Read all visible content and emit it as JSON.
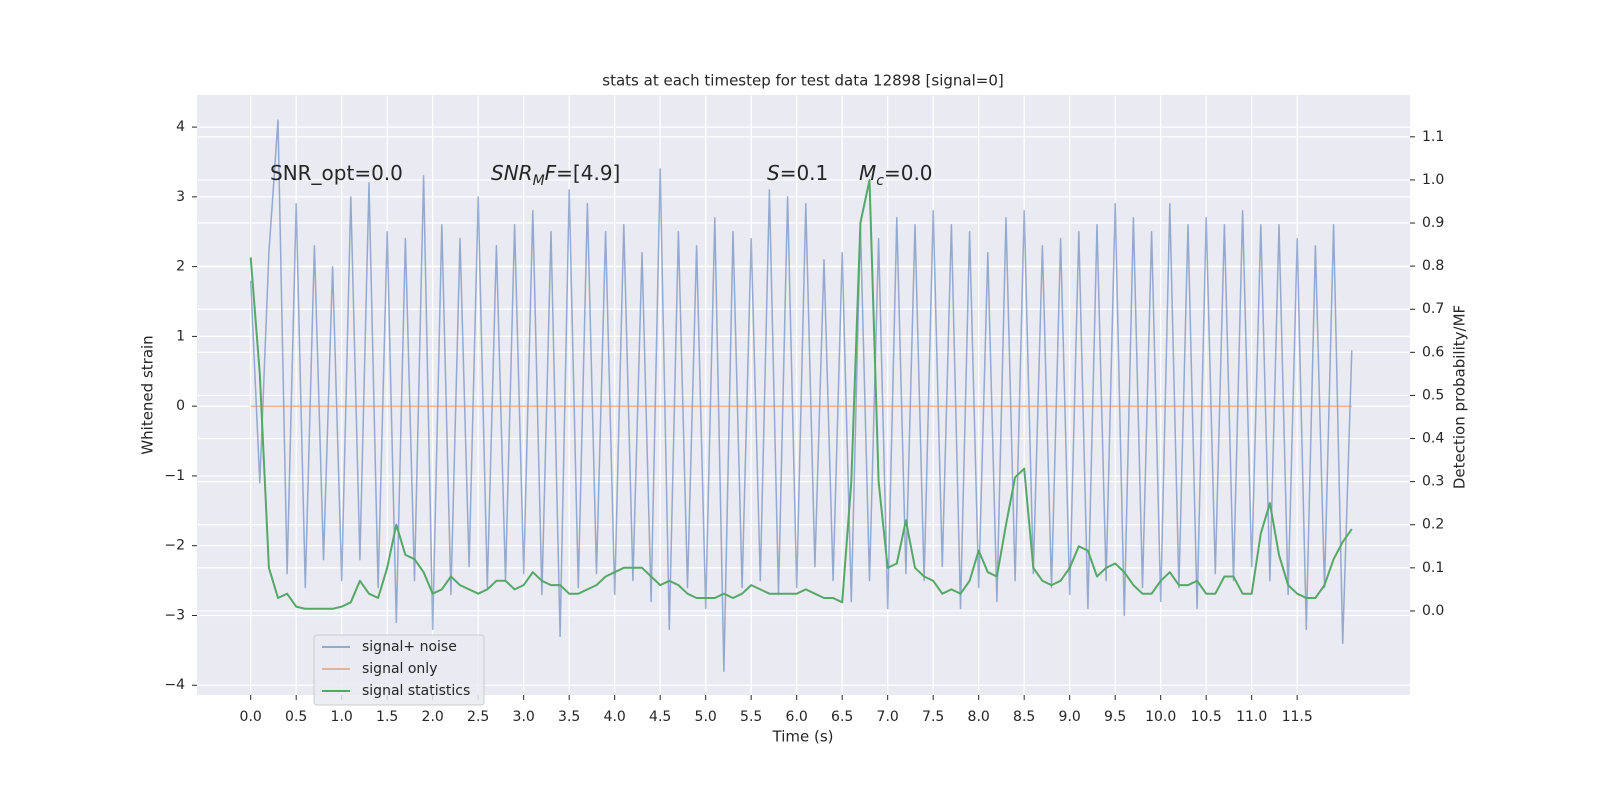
{
  "chart_data": {
    "type": "line",
    "title": "stats at each timestep for test data 12898 [signal=0]",
    "xlabel": "Time (s)",
    "ylabel": "Whitened strain",
    "y2label": "Detection probability/MF",
    "x": [
      0.0,
      0.1,
      0.2,
      0.3,
      0.4,
      0.5,
      0.6,
      0.7,
      0.8,
      0.9,
      1.0,
      1.1,
      1.2,
      1.3,
      1.4,
      1.5,
      1.6,
      1.7,
      1.8,
      1.9,
      2.0,
      2.1,
      2.2,
      2.3,
      2.4,
      2.5,
      2.6,
      2.7,
      2.8,
      2.9,
      3.0,
      3.1,
      3.2,
      3.3,
      3.4,
      3.5,
      3.6,
      3.7,
      3.8,
      3.9,
      4.0,
      4.1,
      4.2,
      4.3,
      4.4,
      4.5,
      4.6,
      4.7,
      4.8,
      4.9,
      5.0,
      5.1,
      5.2,
      5.3,
      5.4,
      5.5,
      5.6,
      5.7,
      5.8,
      5.9,
      6.0,
      6.1,
      6.2,
      6.3,
      6.4,
      6.5,
      6.6,
      6.7,
      6.8,
      6.9,
      7.0,
      7.1,
      7.2,
      7.3,
      7.4,
      7.5,
      7.6,
      7.7,
      7.8,
      7.9,
      8.0,
      8.1,
      8.2,
      8.3,
      8.4,
      8.5,
      8.6,
      8.7,
      8.8,
      8.9,
      9.0,
      9.1,
      9.2,
      9.3,
      9.4,
      9.5,
      9.6,
      9.7,
      9.8,
      9.9,
      10.0,
      10.1,
      10.2,
      10.3,
      10.4,
      10.5,
      10.6,
      10.7,
      10.8,
      10.9,
      11.0,
      11.1,
      11.2,
      11.3,
      11.4,
      11.5,
      11.6,
      11.7,
      11.8,
      11.9,
      12.0,
      12.1
    ],
    "series": [
      {
        "name": "signal+ noise",
        "color": "#4c72b0",
        "opacity": 0.55,
        "values": [
          1.8,
          -1.1,
          2.2,
          4.1,
          -2.4,
          2.9,
          -2.6,
          2.3,
          -2.2,
          2.0,
          -2.5,
          3.0,
          -2.2,
          3.2,
          -2.6,
          2.5,
          -3.1,
          2.4,
          -2.5,
          3.3,
          -3.2,
          2.6,
          -2.7,
          2.4,
          -2.3,
          3.0,
          -2.6,
          2.3,
          -2.5,
          2.6,
          -2.4,
          2.8,
          -2.7,
          2.5,
          -3.3,
          3.1,
          -2.6,
          2.9,
          -2.4,
          2.5,
          -2.7,
          2.6,
          -2.5,
          2.2,
          -2.8,
          3.4,
          -3.2,
          2.5,
          -2.6,
          2.3,
          -2.9,
          2.7,
          -3.8,
          2.5,
          -2.6,
          2.4,
          -2.5,
          3.1,
          -2.7,
          3.0,
          -2.6,
          2.9,
          -2.3,
          2.1,
          -2.5,
          2.2,
          -2.8,
          2.6,
          -2.5,
          2.4,
          -2.9,
          2.7,
          -2.4,
          2.6,
          -2.5,
          2.8,
          -2.3,
          2.6,
          -2.9,
          2.5,
          -2.6,
          2.2,
          -2.8,
          2.7,
          -2.5,
          2.8,
          -2.4,
          2.3,
          -2.6,
          2.4,
          -2.7,
          2.5,
          -2.9,
          2.6,
          -2.5,
          2.9,
          -3.0,
          2.7,
          -2.6,
          2.5,
          -2.8,
          2.9,
          -2.6,
          2.6,
          -2.9,
          2.7,
          -2.4,
          2.6,
          -2.5,
          2.8,
          -2.3,
          2.6,
          -2.5,
          2.6,
          -2.7,
          2.4,
          -3.2,
          2.3,
          -2.6,
          2.6,
          -3.4,
          0.8
        ]
      },
      {
        "name": "signal only",
        "color": "#dd8452",
        "opacity": 0.55,
        "x": [
          0.0,
          12.1
        ],
        "values": [
          0,
          0
        ]
      },
      {
        "name": "signal statistics",
        "color": "#55a868",
        "opacity": 1,
        "axis": "y2",
        "values": [
          0.82,
          0.55,
          0.1,
          0.03,
          0.04,
          0.01,
          0.005,
          0.005,
          0.005,
          0.005,
          0.01,
          0.02,
          0.07,
          0.04,
          0.03,
          0.1,
          0.2,
          0.13,
          0.12,
          0.09,
          0.04,
          0.05,
          0.08,
          0.06,
          0.05,
          0.04,
          0.05,
          0.07,
          0.07,
          0.05,
          0.06,
          0.09,
          0.07,
          0.06,
          0.06,
          0.04,
          0.04,
          0.05,
          0.06,
          0.08,
          0.09,
          0.1,
          0.1,
          0.1,
          0.08,
          0.06,
          0.07,
          0.06,
          0.04,
          0.03,
          0.03,
          0.03,
          0.04,
          0.03,
          0.04,
          0.06,
          0.05,
          0.04,
          0.04,
          0.04,
          0.04,
          0.05,
          0.04,
          0.03,
          0.03,
          0.02,
          0.3,
          0.9,
          1.0,
          0.3,
          0.1,
          0.11,
          0.21,
          0.1,
          0.08,
          0.07,
          0.04,
          0.05,
          0.04,
          0.07,
          0.14,
          0.09,
          0.08,
          0.2,
          0.31,
          0.33,
          0.1,
          0.07,
          0.06,
          0.07,
          0.1,
          0.15,
          0.14,
          0.08,
          0.1,
          0.11,
          0.09,
          0.06,
          0.04,
          0.04,
          0.07,
          0.09,
          0.06,
          0.06,
          0.07,
          0.04,
          0.04,
          0.08,
          0.08,
          0.04,
          0.04,
          0.18,
          0.25,
          0.13,
          0.06,
          0.04,
          0.03,
          0.03,
          0.06,
          0.12,
          0.16,
          0.19
        ]
      }
    ],
    "annotations": [
      [
        {
          "text": "SNR_opt=0.0",
          "style": "normal"
        }
      ],
      [
        {
          "text": "SNR",
          "style": "italic"
        },
        {
          "text": "M",
          "style": "sub"
        },
        {
          "text": "F",
          "style": "italic"
        },
        {
          "text": "=[4.9]",
          "style": "normal"
        }
      ],
      [
        {
          "text": "S",
          "style": "italic"
        },
        {
          "text": "=0.1",
          "style": "normal"
        }
      ],
      [
        {
          "text": "M",
          "style": "italic"
        },
        {
          "text": "c",
          "style": "sub"
        },
        {
          "text": "=0.0",
          "style": "normal"
        }
      ]
    ],
    "xlim": [
      -0.59,
      12.74
    ],
    "xticks": [
      {
        "value": 0,
        "label": "0.0"
      },
      0.5,
      {
        "value": 1,
        "label": "1.0"
      },
      1.5,
      {
        "value": 2,
        "label": "2.0"
      },
      2.5,
      {
        "value": 3,
        "label": "3.0"
      },
      3.5,
      {
        "value": 4,
        "label": "4.0"
      },
      4.5,
      {
        "value": 5,
        "label": "5.0"
      },
      5.5,
      {
        "value": 6,
        "label": "6.0"
      },
      6.5,
      {
        "value": 7,
        "label": "7.0"
      },
      7.5,
      {
        "value": 8,
        "label": "8.0"
      },
      8.5,
      {
        "value": 9,
        "label": "9.0"
      },
      9.5,
      {
        "value": 10,
        "label": "10.0"
      },
      10.5,
      {
        "value": 11,
        "label": "11.0"
      },
      11.5
    ],
    "ylim": [
      -4.14,
      4.46
    ],
    "yticks": [
      4,
      3,
      2,
      1,
      0,
      {
        "value": -1,
        "label": "−1"
      },
      {
        "value": -2,
        "label": "−2"
      },
      {
        "value": -3,
        "label": "−3"
      },
      {
        "value": -4,
        "label": "−4"
      }
    ],
    "y2lim": [
      -0.195,
      1.197
    ],
    "y2ticks": [
      {
        "value": 0,
        "label": "0.0"
      },
      0.1,
      0.2,
      0.3,
      0.4,
      0.5,
      0.6,
      0.7,
      0.8,
      0.9,
      {
        "value": 1,
        "label": "1.0"
      },
      1.1
    ],
    "grid": true,
    "legend": "lower left"
  }
}
